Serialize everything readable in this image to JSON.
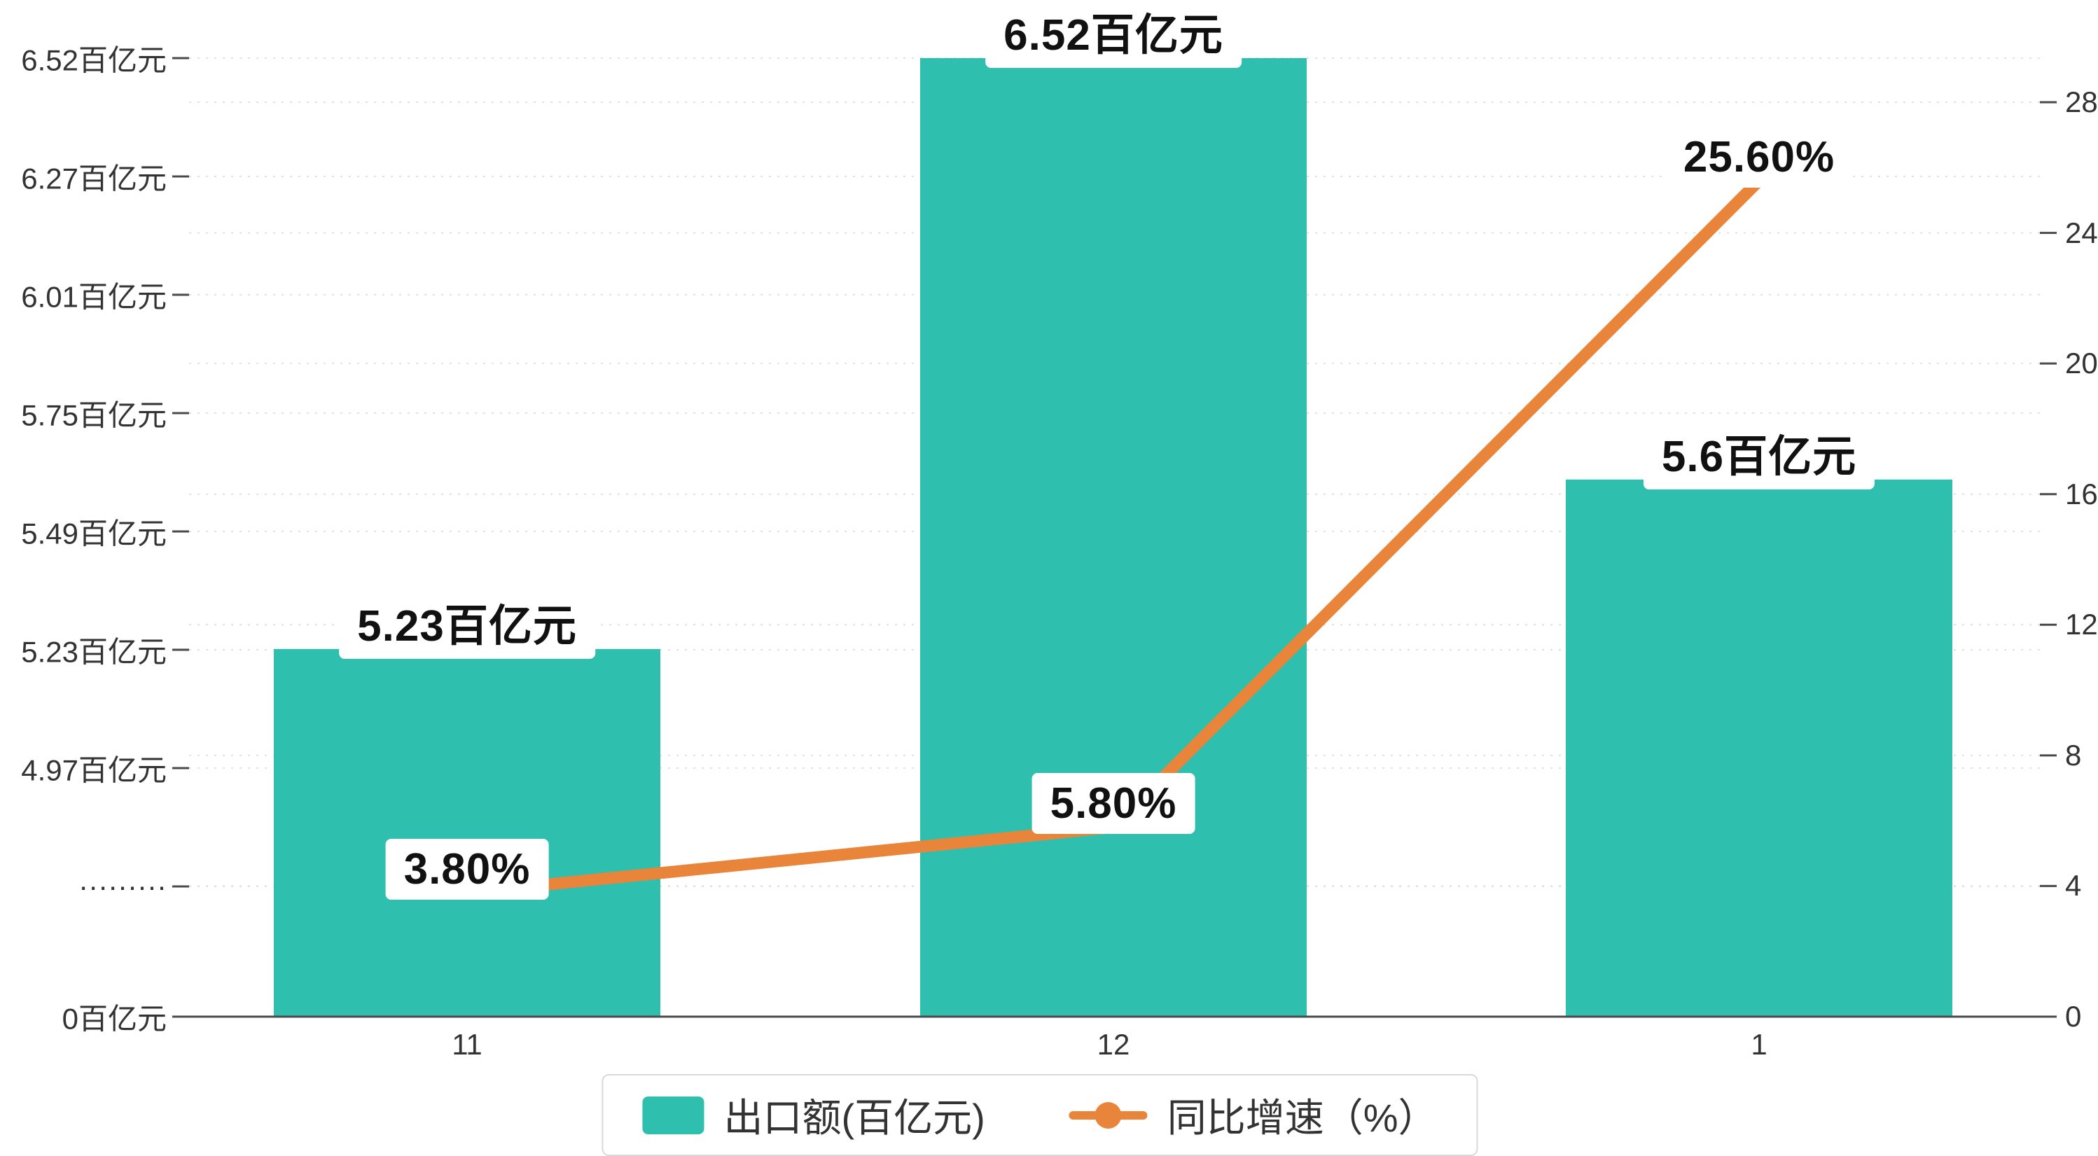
{
  "chart_data": {
    "type": "bar+line",
    "title": "",
    "categories": [
      "11",
      "12",
      "1"
    ],
    "series": [
      {
        "name": "出口额(百亿元)",
        "type": "bar",
        "axis": "left",
        "color": "#2fbfae",
        "values": [
          5.23,
          6.52,
          5.6
        ],
        "labels": [
          "5.23百亿元",
          "6.52百亿元",
          "5.6百亿元"
        ]
      },
      {
        "name": "同比增速（%）",
        "type": "line",
        "axis": "right",
        "color": "#e8853b",
        "values": [
          3.8,
          5.8,
          25.6
        ],
        "labels": [
          "3.80%",
          "5.80%",
          "25.60%"
        ]
      }
    ],
    "left_axis": {
      "unit": "百亿元",
      "broken": true,
      "tick_labels": [
        "6.52百亿元",
        "6.27百亿元",
        "6.01百亿元",
        "5.75百亿元",
        "5.49百亿元",
        "5.23百亿元",
        "4.97百亿元",
        "·········",
        "0百亿元"
      ],
      "tick_values": [
        6.52,
        6.27,
        6.01,
        5.75,
        5.49,
        5.23,
        4.97,
        null,
        0
      ]
    },
    "right_axis": {
      "unit": "%",
      "min": 0,
      "max": 28,
      "tick_labels": [
        "28",
        "24",
        "20",
        "16",
        "12",
        "8",
        "4",
        "0"
      ],
      "tick_values": [
        28,
        24,
        20,
        16,
        12,
        8,
        4,
        0
      ]
    },
    "legend": [
      {
        "label": "出口额(百亿元)",
        "marker": "bar",
        "color": "#2fbfae"
      },
      {
        "label": "同比增速（%）",
        "marker": "line",
        "color": "#e8853b"
      }
    ],
    "grid": "dotted horizontal"
  }
}
